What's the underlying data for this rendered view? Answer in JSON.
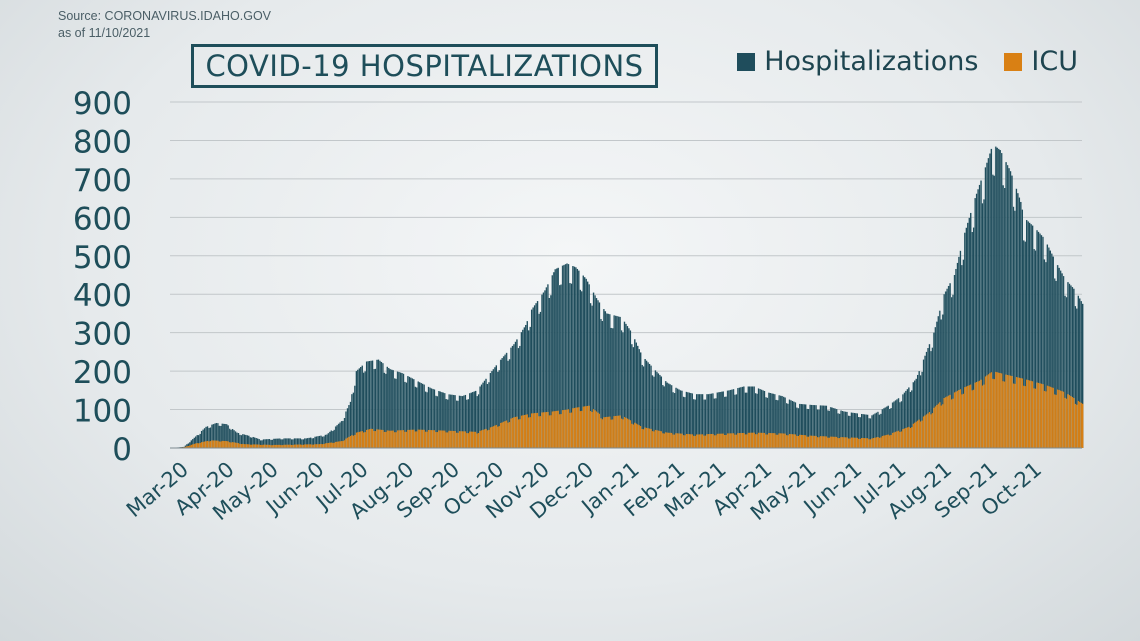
{
  "source": {
    "line1": "Source: CORONAVIRUS.IDAHO.GOV",
    "line2": "as of 11/10/2021"
  },
  "colors": {
    "hospitalizations": "#1f4d5c",
    "icu": "#d98014",
    "axis_text": "#1e4e5a",
    "grid": "#c2c7ca"
  },
  "chart_data": {
    "type": "bar",
    "title": "COVID-19 HOSPITALIZATIONS",
    "ylim": [
      0,
      900
    ],
    "yticks": [
      0,
      100,
      200,
      300,
      400,
      500,
      600,
      700,
      800,
      900
    ],
    "grid": true,
    "legend_position": "top-right",
    "x_tick_labels": [
      "Mar-20",
      "Apr-20",
      "May-20",
      "Jun-20",
      "Jul-20",
      "Aug-20",
      "Sep-20",
      "Oct-20",
      "Nov-20",
      "Dec-20",
      "Jan-21",
      "Feb-21",
      "Mar-21",
      "Apr-21",
      "May-21",
      "Jun-21",
      "Jul-21",
      "Aug-21",
      "Sep-21",
      "Oct-21"
    ],
    "x_start": "2020-03-01",
    "x_end": "2021-11-10",
    "series": [
      {
        "name": "Hospitalizations",
        "points": [
          [
            "2020-03-01",
            0
          ],
          [
            "2020-03-10",
            3
          ],
          [
            "2020-03-18",
            30
          ],
          [
            "2020-03-25",
            55
          ],
          [
            "2020-04-01",
            65
          ],
          [
            "2020-04-08",
            62
          ],
          [
            "2020-04-15",
            40
          ],
          [
            "2020-04-25",
            30
          ],
          [
            "2020-05-01",
            22
          ],
          [
            "2020-05-15",
            25
          ],
          [
            "2020-06-01",
            25
          ],
          [
            "2020-06-15",
            35
          ],
          [
            "2020-06-25",
            70
          ],
          [
            "2020-07-01",
            120
          ],
          [
            "2020-07-05",
            200
          ],
          [
            "2020-07-12",
            225
          ],
          [
            "2020-07-20",
            230
          ],
          [
            "2020-07-28",
            205
          ],
          [
            "2020-08-05",
            195
          ],
          [
            "2020-08-15",
            175
          ],
          [
            "2020-08-25",
            155
          ],
          [
            "2020-09-05",
            140
          ],
          [
            "2020-09-15",
            135
          ],
          [
            "2020-09-25",
            150
          ],
          [
            "2020-10-01",
            180
          ],
          [
            "2020-10-10",
            225
          ],
          [
            "2020-10-20",
            270
          ],
          [
            "2020-10-28",
            320
          ],
          [
            "2020-11-01",
            360
          ],
          [
            "2020-11-10",
            410
          ],
          [
            "2020-11-17",
            465
          ],
          [
            "2020-11-25",
            480
          ],
          [
            "2020-12-01",
            470
          ],
          [
            "2020-12-08",
            440
          ],
          [
            "2020-12-15",
            390
          ],
          [
            "2020-12-22",
            350
          ],
          [
            "2021-01-01",
            340
          ],
          [
            "2021-01-08",
            300
          ],
          [
            "2021-01-15",
            240
          ],
          [
            "2021-01-22",
            210
          ],
          [
            "2021-02-01",
            170
          ],
          [
            "2021-02-10",
            150
          ],
          [
            "2021-02-20",
            140
          ],
          [
            "2021-03-01",
            140
          ],
          [
            "2021-03-15",
            150
          ],
          [
            "2021-03-25",
            160
          ],
          [
            "2021-04-01",
            160
          ],
          [
            "2021-04-10",
            145
          ],
          [
            "2021-04-20",
            135
          ],
          [
            "2021-05-01",
            115
          ],
          [
            "2021-05-10",
            112
          ],
          [
            "2021-05-20",
            110
          ],
          [
            "2021-06-01",
            95
          ],
          [
            "2021-06-10",
            90
          ],
          [
            "2021-06-20",
            85
          ],
          [
            "2021-07-01",
            110
          ],
          [
            "2021-07-10",
            135
          ],
          [
            "2021-07-20",
            180
          ],
          [
            "2021-08-01",
            300
          ],
          [
            "2021-08-08",
            400
          ],
          [
            "2021-08-15",
            450
          ],
          [
            "2021-08-22",
            560
          ],
          [
            "2021-08-29",
            650
          ],
          [
            "2021-09-05",
            730
          ],
          [
            "2021-09-10",
            790
          ],
          [
            "2021-09-15",
            775
          ],
          [
            "2021-09-22",
            720
          ],
          [
            "2021-09-29",
            640
          ],
          [
            "2021-10-01",
            600
          ],
          [
            "2021-10-08",
            575
          ],
          [
            "2021-10-15",
            545
          ],
          [
            "2021-10-22",
            490
          ],
          [
            "2021-10-29",
            440
          ],
          [
            "2021-11-05",
            410
          ],
          [
            "2021-11-10",
            375
          ]
        ]
      },
      {
        "name": "ICU",
        "points": [
          [
            "2020-03-01",
            0
          ],
          [
            "2020-03-10",
            2
          ],
          [
            "2020-03-18",
            12
          ],
          [
            "2020-03-28",
            20
          ],
          [
            "2020-04-08",
            18
          ],
          [
            "2020-04-20",
            10
          ],
          [
            "2020-05-10",
            8
          ],
          [
            "2020-06-10",
            10
          ],
          [
            "2020-06-25",
            18
          ],
          [
            "2020-07-05",
            40
          ],
          [
            "2020-07-15",
            50
          ],
          [
            "2020-07-28",
            45
          ],
          [
            "2020-08-15",
            48
          ],
          [
            "2020-09-05",
            45
          ],
          [
            "2020-09-25",
            42
          ],
          [
            "2020-10-05",
            55
          ],
          [
            "2020-10-20",
            80
          ],
          [
            "2020-11-01",
            90
          ],
          [
            "2020-11-15",
            95
          ],
          [
            "2020-11-25",
            100
          ],
          [
            "2020-12-01",
            105
          ],
          [
            "2020-12-10",
            110
          ],
          [
            "2020-12-20",
            80
          ],
          [
            "2021-01-01",
            85
          ],
          [
            "2021-01-15",
            55
          ],
          [
            "2021-02-01",
            40
          ],
          [
            "2021-02-20",
            35
          ],
          [
            "2021-03-15",
            38
          ],
          [
            "2021-04-01",
            40
          ],
          [
            "2021-04-20",
            38
          ],
          [
            "2021-05-10",
            32
          ],
          [
            "2021-06-01",
            28
          ],
          [
            "2021-06-20",
            25
          ],
          [
            "2021-07-01",
            35
          ],
          [
            "2021-07-15",
            55
          ],
          [
            "2021-07-28",
            90
          ],
          [
            "2021-08-08",
            130
          ],
          [
            "2021-08-20",
            155
          ],
          [
            "2021-09-01",
            175
          ],
          [
            "2021-09-10",
            200
          ],
          [
            "2021-09-20",
            190
          ],
          [
            "2021-10-01",
            180
          ],
          [
            "2021-10-15",
            165
          ],
          [
            "2021-10-29",
            145
          ],
          [
            "2021-11-10",
            115
          ]
        ]
      }
    ]
  }
}
